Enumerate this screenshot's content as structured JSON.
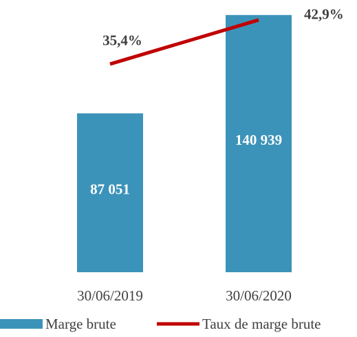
{
  "chart_data": {
    "type": "bar",
    "categories": [
      "30/06/2019",
      "30/06/2020"
    ],
    "series": [
      {
        "name": "Marge brute",
        "type": "bar",
        "color": "#3c93b9",
        "values": [
          87051,
          140939
        ],
        "value_labels": [
          "87 051",
          "140 939"
        ]
      },
      {
        "name": "Taux de marge brute",
        "type": "line",
        "axis": "y2",
        "color": "#c00000",
        "values": [
          35.4,
          42.9
        ],
        "value_labels": [
          "35,4%",
          "42,9%"
        ]
      }
    ],
    "ylim": [
      0,
      145000
    ],
    "y2lim": [
      0,
      45
    ],
    "grid": false,
    "legend": "bottom"
  }
}
